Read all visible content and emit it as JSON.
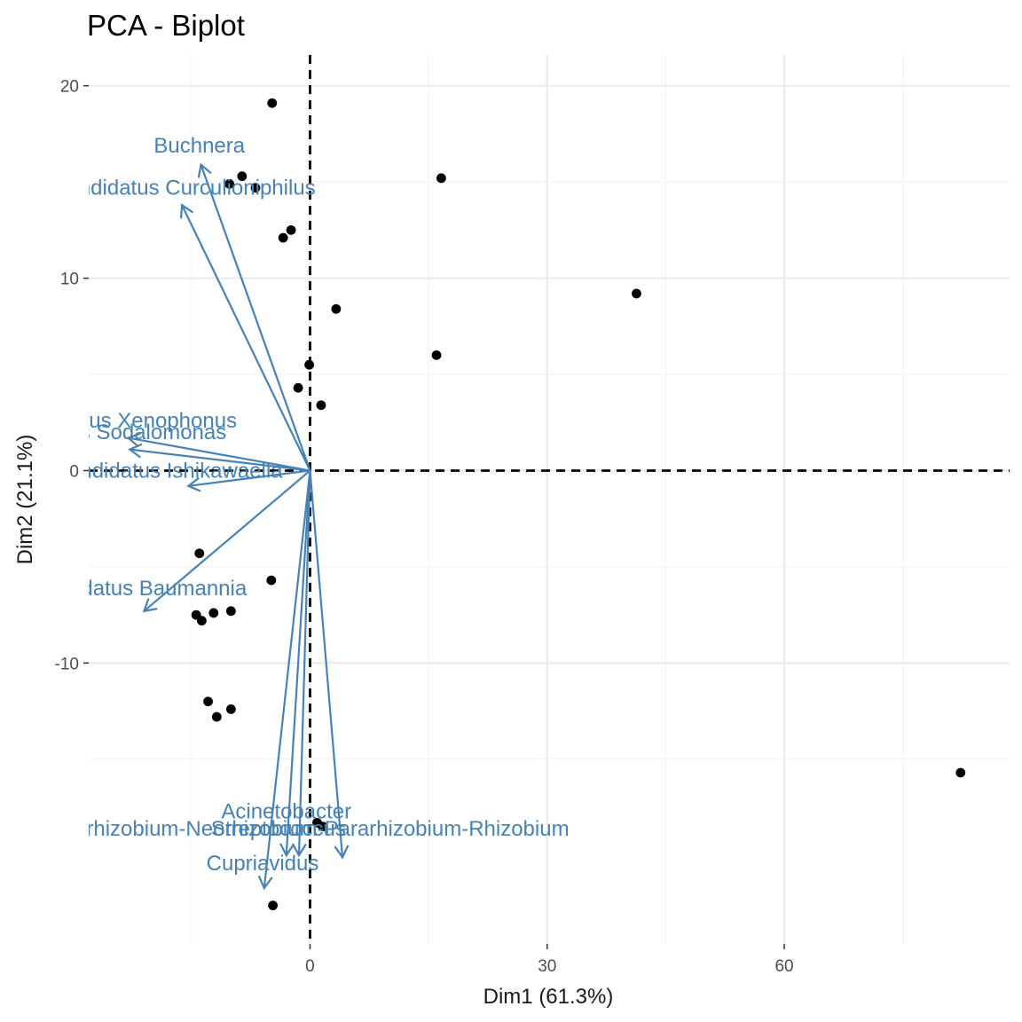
{
  "chart_data": {
    "type": "scatter",
    "title": "PCA - Biplot",
    "xlabel": "Dim1 (61.3%)",
    "ylabel": "Dim2 (21.1%)",
    "xlim": [
      -28,
      88.5
    ],
    "ylim": [
      -24.6,
      21.6
    ],
    "grid": true,
    "x_ticks": [
      0,
      30,
      60
    ],
    "y_ticks": [
      -10,
      0,
      10,
      20
    ],
    "x_minor": [
      -15,
      15,
      45,
      75
    ],
    "y_minor": [
      -15,
      -5,
      5,
      15
    ],
    "reference_lines": {
      "x": 0,
      "y": 0,
      "style": "dashed",
      "color": "#000000"
    },
    "point_color": "#000000",
    "arrow_color": "#4682b4",
    "individuals": [
      {
        "x": -4.8,
        "y": 19.1
      },
      {
        "x": -8.6,
        "y": 15.3
      },
      {
        "x": -10.2,
        "y": 14.9
      },
      {
        "x": -6.9,
        "y": 14.7
      },
      {
        "x": 16.6,
        "y": 15.2
      },
      {
        "x": -2.4,
        "y": 12.5
      },
      {
        "x": -3.4,
        "y": 12.1
      },
      {
        "x": 41.3,
        "y": 9.2
      },
      {
        "x": 3.3,
        "y": 8.4
      },
      {
        "x": 16.0,
        "y": 6.0
      },
      {
        "x": -0.1,
        "y": 5.5
      },
      {
        "x": -1.5,
        "y": 4.3
      },
      {
        "x": 1.4,
        "y": 3.4
      },
      {
        "x": -14.0,
        "y": -4.3
      },
      {
        "x": -4.9,
        "y": -5.7
      },
      {
        "x": -14.4,
        "y": -7.5
      },
      {
        "x": -12.2,
        "y": -7.4
      },
      {
        "x": -10.0,
        "y": -7.3
      },
      {
        "x": -13.7,
        "y": -7.8
      },
      {
        "x": -12.9,
        "y": -12.0
      },
      {
        "x": -10.0,
        "y": -12.4
      },
      {
        "x": -11.8,
        "y": -12.8
      },
      {
        "x": 82.3,
        "y": -15.7
      },
      {
        "x": 0.9,
        "y": -18.3
      },
      {
        "x": 1.6,
        "y": -18.5
      },
      {
        "x": -4.7,
        "y": -22.6
      }
    ],
    "variables": [
      {
        "name": "Buchnera",
        "x": -13.8,
        "y": 15.9,
        "label_x": -14,
        "label_y": 16.9
      },
      {
        "name": "Candidatus Curculioniphilus",
        "x": -16.2,
        "y": 13.8,
        "label_x": -16,
        "label_y": 14.7
      },
      {
        "name": "Candidatus Xenophonus",
        "x": -23.0,
        "y": 1.7,
        "label_x": -24,
        "label_y": 2.6
      },
      {
        "name": "Candidatus Sodalomonas",
        "x": -22.8,
        "y": 1.1,
        "label_x": -26,
        "label_y": 2.0
      },
      {
        "name": "Candidatus Ishikawaella",
        "x": -15.4,
        "y": -0.8,
        "label_x": -18,
        "label_y": 0.0
      },
      {
        "name": "Candidatus Baumannia",
        "x": -21.0,
        "y": -7.3,
        "label_x": -22,
        "label_y": -6.1
      },
      {
        "name": "Acinetobacter",
        "x": -1.4,
        "y": -20.0,
        "label_x": -3,
        "label_y": -17.7
      },
      {
        "name": "Allorhizobium-Neorhizobium-Pararhizobium-Rhizobium",
        "x": 4.1,
        "y": -20.1,
        "label_x": 0,
        "label_y": -18.6
      },
      {
        "name": "Streptococcus",
        "x": -3.0,
        "y": -20.0,
        "label_x": -4,
        "label_y": -18.6
      },
      {
        "name": "Cupriavidus",
        "x": -5.8,
        "y": -21.7,
        "label_x": -6,
        "label_y": -20.4
      }
    ]
  }
}
